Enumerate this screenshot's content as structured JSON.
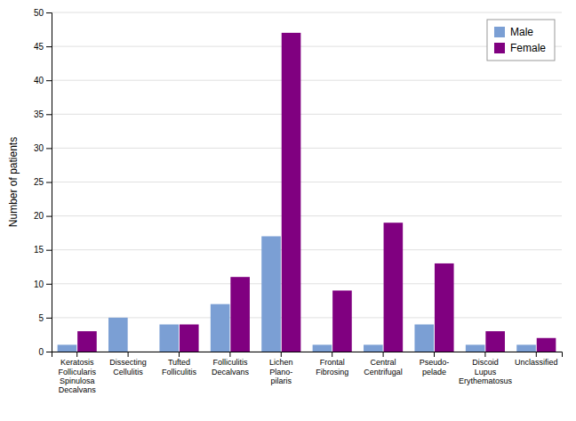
{
  "chart_data": {
    "type": "bar",
    "categories": [
      "Keratosis\nFollicularis\nSpinulosa\nDecalvans",
      "Dissecting\nCellulitis",
      "Tufted\nFolliculitis",
      "Folliculitis\nDecalvans",
      "Lichen\nPlano-\npilaris",
      "Frontal\nFibrosing",
      "Central\nCentrifugal",
      "Pseudo-\npelade",
      "Discoid\nLupus\nErythematosus",
      "Unclassified"
    ],
    "series": [
      {
        "name": "Male",
        "color": "#7B9FD4",
        "values": [
          1,
          5,
          4,
          7,
          17,
          1,
          1,
          4,
          1,
          1
        ]
      },
      {
        "name": "Female",
        "color": "#800080",
        "values": [
          3,
          0,
          4,
          11,
          47,
          9,
          19,
          13,
          3,
          2
        ]
      }
    ],
    "y_label": "Number of patients",
    "ylim": [
      0,
      50
    ],
    "yticks": [
      0,
      5,
      10,
      15,
      20,
      25,
      30,
      35,
      40,
      45,
      50
    ],
    "grid": true,
    "legend": "upper right"
  }
}
